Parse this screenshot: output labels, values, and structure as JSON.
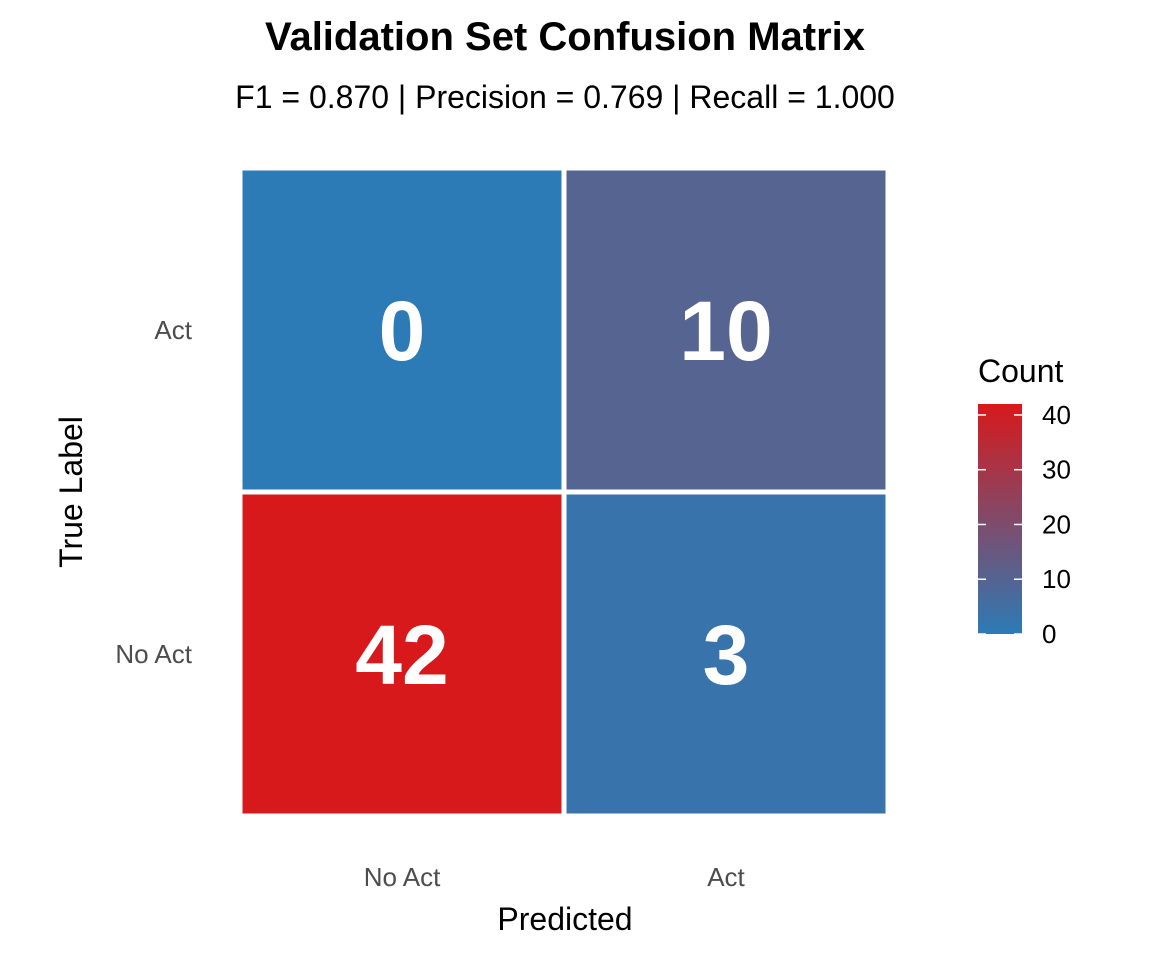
{
  "chart_data": {
    "type": "heatmap",
    "title": "Validation Set Confusion Matrix",
    "subtitle": "F1 = 0.870 | Precision = 0.769 | Recall = 1.000",
    "xlabel": "Predicted",
    "ylabel": "True Label",
    "x_categories": [
      "No Act",
      "Act"
    ],
    "y_categories": [
      "No Act",
      "Act"
    ],
    "cells": [
      {
        "predicted": "No Act",
        "true": "Act",
        "value": 0
      },
      {
        "predicted": "Act",
        "true": "Act",
        "value": 10
      },
      {
        "predicted": "No Act",
        "true": "No Act",
        "value": 42
      },
      {
        "predicted": "Act",
        "true": "No Act",
        "value": 3
      }
    ],
    "legend": {
      "title": "Count",
      "ticks": [
        0,
        10,
        20,
        30,
        40
      ],
      "range": [
        0,
        42
      ],
      "low_color": "#2c7bb6",
      "high_color": "#d7191c",
      "placement": "right"
    }
  }
}
